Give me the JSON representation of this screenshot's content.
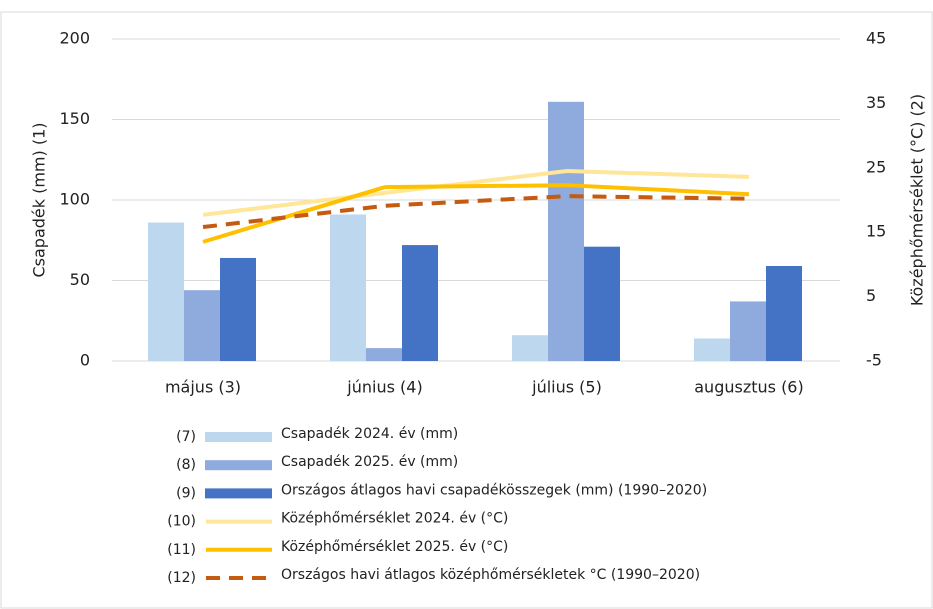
{
  "chart_data": {
    "type": "bar-line",
    "y_label": "Csapadék (mm) (1)",
    "y2_label": "Középhőmérséklet (°C) (2)",
    "categories": [
      "május (3)",
      "június (4)",
      "július (5)",
      "augusztus (6)"
    ],
    "ylim": [
      0,
      200
    ],
    "yticks": [
      0,
      50,
      100,
      150,
      200
    ],
    "y2lim": [
      -5,
      45
    ],
    "y2ticks": [
      -5,
      5,
      15,
      25,
      35,
      45
    ],
    "grid": true,
    "legend": "bottom",
    "series": [
      {
        "name": "Csapadék 2024. év (mm)",
        "tag": "(7)",
        "type": "bar",
        "color": "#bdd7ee",
        "values": [
          86,
          91,
          16,
          14
        ]
      },
      {
        "name": "Csapadék 2025. év (mm)",
        "tag": "(8)",
        "type": "bar",
        "color": "#8faadc",
        "values": [
          44,
          8,
          161,
          37
        ]
      },
      {
        "name": "Országos átlagos havi csapadékösszegek (mm) (1990–2020)",
        "tag": "(9)",
        "type": "bar",
        "color": "#4472c4",
        "values": [
          64,
          72,
          71,
          59
        ]
      },
      {
        "name": "Középhőmérséklet 2024. év (°C)",
        "tag": "(10)",
        "type": "line",
        "axis": "y2",
        "color": "#ffe699",
        "values": [
          17.7,
          21.1,
          24.5,
          23.6
        ]
      },
      {
        "name": "Középhőmérséklet 2025. év (°C)",
        "tag": "(11)",
        "type": "line",
        "axis": "y2",
        "color": "#ffc000",
        "values": [
          13.5,
          22.0,
          22.3,
          20.9
        ]
      },
      {
        "name": "Országos havi átlagos középhőmérsékletek °C (1990–2020)",
        "tag": "(12)",
        "type": "line",
        "axis": "y2",
        "color": "#c55a11",
        "dashed": true,
        "values": [
          15.8,
          19.1,
          20.6,
          20.2
        ]
      }
    ]
  }
}
